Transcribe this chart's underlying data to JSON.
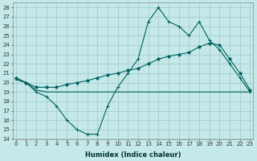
{
  "xlabel": "Humidex (Indice chaleur)",
  "background_color": "#c5e8e8",
  "grid_color": "#a0c8c8",
  "line_color": "#006060",
  "x": [
    0,
    1,
    2,
    3,
    4,
    5,
    6,
    7,
    8,
    9,
    10,
    11,
    12,
    13,
    14,
    15,
    16,
    17,
    18,
    19,
    20,
    21,
    22,
    23
  ],
  "line1": [
    20.5,
    20.0,
    19.0,
    18.5,
    17.5,
    16.0,
    15.0,
    14.5,
    14.5,
    17.5,
    19.5,
    21.0,
    22.5,
    26.5,
    28.0,
    26.5,
    26.0,
    25.0,
    26.5,
    24.5,
    23.5,
    22.0,
    20.5,
    19.0
  ],
  "line2": [
    20.3,
    20.0,
    19.2,
    19.0,
    19.0,
    19.0,
    19.0,
    19.0,
    19.0,
    19.0,
    19.0,
    19.0,
    19.0,
    19.0,
    19.0,
    19.0,
    19.0,
    19.0,
    19.0,
    19.0,
    19.0,
    19.0,
    19.0,
    19.0
  ],
  "line3": [
    20.5,
    20.0,
    19.5,
    19.5,
    19.5,
    19.8,
    20.0,
    20.2,
    20.5,
    20.8,
    21.0,
    21.3,
    21.5,
    22.0,
    22.5,
    22.8,
    23.0,
    23.2,
    23.8,
    24.2,
    24.0,
    22.5,
    21.0,
    19.2
  ],
  "ylim": [
    14,
    28.5
  ],
  "yticks": [
    14,
    15,
    16,
    17,
    18,
    19,
    20,
    21,
    22,
    23,
    24,
    25,
    26,
    27,
    28
  ],
  "xlim": [
    -0.3,
    23.3
  ],
  "figsize": [
    3.2,
    2.0
  ],
  "dpi": 100
}
